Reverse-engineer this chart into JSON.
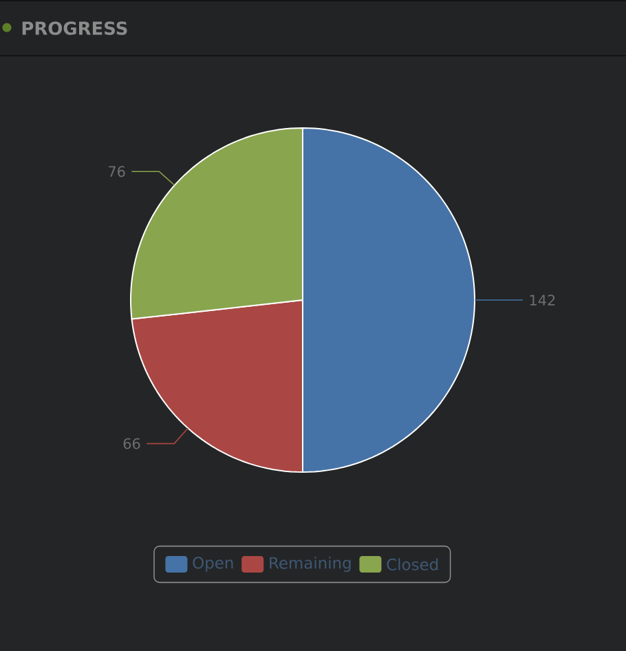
{
  "chart_data": {
    "type": "pie",
    "title": "PROGRESS",
    "categories": [
      "Open",
      "Remaining",
      "Closed"
    ],
    "values": [
      142,
      66,
      76
    ],
    "colors": [
      "#4673a7",
      "#aa4744",
      "#89a54e"
    ],
    "data_labels": true,
    "legend": "bottom"
  }
}
